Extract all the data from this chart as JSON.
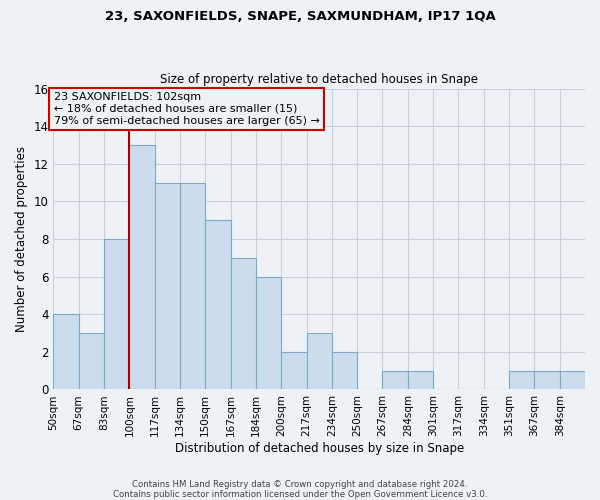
{
  "title1": "23, SAXONFIELDS, SNAPE, SAXMUNDHAM, IP17 1QA",
  "title2": "Size of property relative to detached houses in Snape",
  "xlabel": "Distribution of detached houses by size in Snape",
  "ylabel": "Number of detached properties",
  "bin_labels": [
    "50sqm",
    "67sqm",
    "83sqm",
    "100sqm",
    "117sqm",
    "134sqm",
    "150sqm",
    "167sqm",
    "184sqm",
    "200sqm",
    "217sqm",
    "234sqm",
    "250sqm",
    "267sqm",
    "284sqm",
    "301sqm",
    "317sqm",
    "334sqm",
    "351sqm",
    "367sqm",
    "384sqm"
  ],
  "bar_values": [
    4,
    3,
    8,
    13,
    11,
    11,
    9,
    7,
    6,
    2,
    3,
    2,
    0,
    1,
    1,
    0,
    0,
    0,
    1,
    1,
    1
  ],
  "bar_color": "#ccdcec",
  "bar_edge_color": "#7aaac8",
  "grid_color": "#c8d0dc",
  "annotation_line1": "23 SAXONFIELDS: 102sqm",
  "annotation_line2": "← 18% of detached houses are smaller (15)",
  "annotation_line3": "79% of semi-detached houses are larger (65) →",
  "annotation_box_edge_color": "#cc0000",
  "property_line_color": "#aa0000",
  "ylim": [
    0,
    16
  ],
  "yticks": [
    0,
    2,
    4,
    6,
    8,
    10,
    12,
    14,
    16
  ],
  "footer1": "Contains HM Land Registry data © Crown copyright and database right 2024.",
  "footer2": "Contains public sector information licensed under the Open Government Licence v3.0.",
  "background_color": "#eef2f7"
}
